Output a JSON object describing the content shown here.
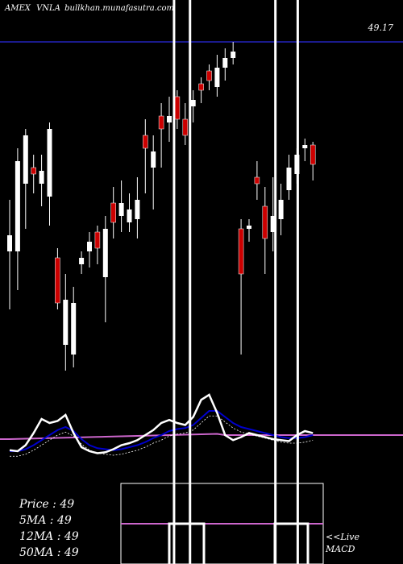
{
  "header": {
    "exchange": "AMEX",
    "symbol": "VNLA",
    "site": "bullkhan.munafasutra.com",
    "resistance_label": "49.17"
  },
  "legend": {
    "price": "Price   :  49",
    "ma5": "5MA : 49",
    "ma12": "12MA : 49",
    "ma50": "50MA : 49"
  },
  "macd": {
    "live_label": "<<Live",
    "title": "MACD"
  },
  "colors": {
    "background": "#000000",
    "bull_candle": "#ffffff",
    "bear_candle": "#cc0000",
    "resistance_line": "#1a1a8c",
    "macd_line": "#ffffff",
    "signal_line": "#0000cc",
    "ma_purple": "#cc66cc",
    "vertical_marker": "#ffffff"
  },
  "chart_data": {
    "type": "candlestick",
    "price_axis": {
      "min": 48.0,
      "max": 49.3,
      "resistance": 49.17
    },
    "candles": [
      {
        "o": 48.52,
        "c": 48.57,
        "h": 48.68,
        "l": 48.34
      },
      {
        "o": 48.52,
        "c": 48.8,
        "h": 48.84,
        "l": 48.4
      },
      {
        "o": 48.73,
        "c": 48.88,
        "h": 48.9,
        "l": 48.59
      },
      {
        "o": 48.78,
        "c": 48.76,
        "h": 48.82,
        "l": 48.7
      },
      {
        "o": 48.73,
        "c": 48.77,
        "h": 48.82,
        "l": 48.66
      },
      {
        "o": 48.69,
        "c": 48.9,
        "h": 48.92,
        "l": 48.6
      },
      {
        "o": 48.5,
        "c": 48.36,
        "h": 48.53,
        "l": 48.34
      },
      {
        "o": 48.23,
        "c": 48.37,
        "h": 48.45,
        "l": 48.15
      },
      {
        "o": 48.2,
        "c": 48.36,
        "h": 48.41,
        "l": 48.16
      },
      {
        "o": 48.48,
        "c": 48.5,
        "h": 48.52,
        "l": 48.45
      },
      {
        "o": 48.52,
        "c": 48.55,
        "h": 48.58,
        "l": 48.47
      },
      {
        "o": 48.58,
        "c": 48.53,
        "h": 48.6,
        "l": 48.48
      },
      {
        "o": 48.44,
        "c": 48.59,
        "h": 48.63,
        "l": 48.3
      },
      {
        "o": 48.67,
        "c": 48.61,
        "h": 48.72,
        "l": 48.56
      },
      {
        "o": 48.63,
        "c": 48.67,
        "h": 48.74,
        "l": 48.58
      },
      {
        "o": 48.61,
        "c": 48.65,
        "h": 48.7,
        "l": 48.58
      },
      {
        "o": 48.62,
        "c": 48.68,
        "h": 48.75,
        "l": 48.56
      },
      {
        "o": 48.88,
        "c": 48.84,
        "h": 48.93,
        "l": 48.7
      },
      {
        "o": 48.78,
        "c": 48.83,
        "h": 48.88,
        "l": 48.65
      },
      {
        "o": 48.94,
        "c": 48.9,
        "h": 48.98,
        "l": 48.78
      },
      {
        "o": 48.92,
        "c": 48.94,
        "h": 49.0,
        "l": 48.86
      },
      {
        "o": 49.0,
        "c": 48.93,
        "h": 49.02,
        "l": 48.9
      },
      {
        "o": 48.93,
        "c": 48.88,
        "h": 48.98,
        "l": 48.85
      },
      {
        "o": 48.97,
        "c": 48.99,
        "h": 49.02,
        "l": 48.92
      },
      {
        "o": 49.04,
        "c": 49.02,
        "h": 49.06,
        "l": 48.98
      },
      {
        "o": 49.08,
        "c": 49.05,
        "h": 49.1,
        "l": 49.02
      },
      {
        "o": 49.03,
        "c": 49.09,
        "h": 49.13,
        "l": 49.0
      },
      {
        "o": 49.09,
        "c": 49.12,
        "h": 49.15,
        "l": 49.05
      },
      {
        "o": 49.12,
        "c": 49.14,
        "h": 49.17,
        "l": 49.1
      },
      {
        "o": 48.59,
        "c": 48.45,
        "h": 48.62,
        "l": 48.2
      },
      {
        "o": 48.59,
        "c": 48.6,
        "h": 48.62,
        "l": 48.55
      },
      {
        "o": 48.75,
        "c": 48.73,
        "h": 48.8,
        "l": 48.68
      },
      {
        "o": 48.66,
        "c": 48.56,
        "h": 48.72,
        "l": 48.45
      },
      {
        "o": 48.58,
        "c": 48.63,
        "h": 48.75,
        "l": 48.52
      },
      {
        "o": 48.62,
        "c": 48.68,
        "h": 48.73,
        "l": 48.57
      },
      {
        "o": 48.71,
        "c": 48.78,
        "h": 48.82,
        "l": 48.68
      },
      {
        "o": 48.76,
        "c": 48.82,
        "h": 48.84,
        "l": 48.73
      },
      {
        "o": 48.84,
        "c": 48.85,
        "h": 48.87,
        "l": 48.8
      },
      {
        "o": 48.85,
        "c": 48.79,
        "h": 48.86,
        "l": 48.74
      }
    ],
    "vertical_markers_index": [
      20.6,
      22.6,
      33.3,
      36.1
    ],
    "macd_panel": {
      "macd": [
        0.45,
        0.44,
        0.5,
        0.62,
        0.76,
        0.72,
        0.74,
        0.8,
        0.62,
        0.48,
        0.44,
        0.42,
        0.43,
        0.46,
        0.5,
        0.52,
        0.55,
        0.6,
        0.65,
        0.72,
        0.75,
        0.72,
        0.7,
        0.78,
        0.95,
        1.0,
        0.82,
        0.6,
        0.55,
        0.58,
        0.62,
        0.6,
        0.58,
        0.56,
        0.55,
        0.54,
        0.6,
        0.64,
        0.62
      ],
      "signal": [
        0.44,
        0.44,
        0.46,
        0.5,
        0.55,
        0.6,
        0.65,
        0.68,
        0.64,
        0.56,
        0.5,
        0.47,
        0.46,
        0.45,
        0.46,
        0.48,
        0.5,
        0.53,
        0.57,
        0.6,
        0.64,
        0.66,
        0.67,
        0.7,
        0.77,
        0.84,
        0.84,
        0.78,
        0.72,
        0.68,
        0.66,
        0.64,
        0.62,
        0.6,
        0.58,
        0.57,
        0.57,
        0.58,
        0.6
      ],
      "purple_level": 0.6
    }
  }
}
